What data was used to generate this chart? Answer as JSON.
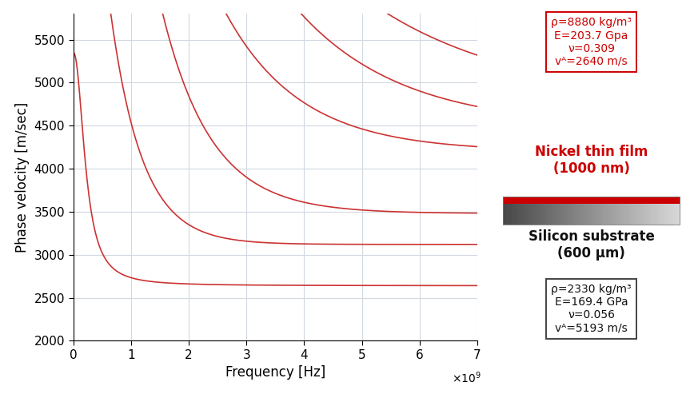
{
  "xlabel": "Frequency [Hz]",
  "ylabel": "Phase velocity [m/sec]",
  "xlim": [
    0,
    7000000000.0
  ],
  "ylim": [
    2000,
    5800
  ],
  "xticks": [
    0,
    1000000000.0,
    2000000000.0,
    3000000000.0,
    4000000000.0,
    5000000000.0,
    6000000000.0,
    7000000000.0
  ],
  "xtick_labels": [
    "0",
    "1",
    "2",
    "3",
    "4",
    "5",
    "6",
    "7"
  ],
  "yticks": [
    2000,
    2500,
    3000,
    3500,
    4000,
    4500,
    5000,
    5500
  ],
  "curve_color": "#cc3333",
  "line_width": 1.2,
  "box_color_red": "#cc0000",
  "text_color_red": "#cc0000",
  "text_color_black": "#111111",
  "bg_color": "#ffffff",
  "grid_color": "#d0d8e0"
}
